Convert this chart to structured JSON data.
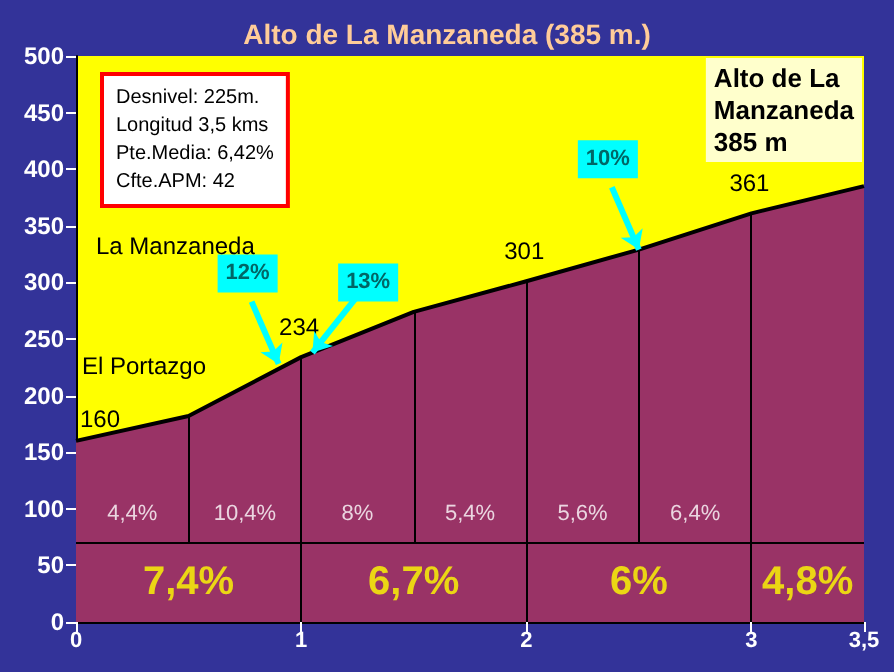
{
  "chart_data": {
    "type": "area",
    "title": "Alto de La Manzaneda (385 m.)",
    "x": [
      0,
      0.5,
      1,
      1.5,
      2,
      2.5,
      3,
      3.5
    ],
    "series": [
      {
        "color": "#993366",
        "values": [
          160,
          182,
          234,
          274,
          301,
          329,
          361,
          385
        ],
        "value_labels": [
          "160",
          null,
          "234",
          null,
          "301",
          null,
          "361",
          null
        ]
      }
    ],
    "xlim": [
      0,
      3.5
    ],
    "xticks": [
      0,
      1,
      2,
      3,
      {
        "value": 3.5,
        "label": "3,5"
      }
    ],
    "ylim": [
      0,
      500
    ],
    "yticks": [
      0,
      50,
      100,
      150,
      200,
      250,
      300,
      350,
      400,
      450,
      500
    ],
    "grid": false,
    "ref_lines": [
      {
        "axis": "x",
        "value": 0.5
      },
      {
        "axis": "x",
        "value": 1
      },
      {
        "axis": "x",
        "value": 1.5
      },
      {
        "axis": "x",
        "value": 2
      },
      {
        "axis": "x",
        "value": 2.5
      },
      {
        "axis": "x",
        "value": 3
      },
      {
        "axis": "y",
        "value": 70
      }
    ],
    "annotations": [
      "Desnivel: 225m.\nLongitud 3,5 kms\nPte.Media: 6,42%\nCfte.APM: 42",
      "Alto de La\nManzaneda\n385 m",
      "El Portazgo",
      "La Manzaneda",
      {
        "text": "12%",
        "x": 0.9,
        "y": 228
      },
      {
        "text": "13%",
        "x": 1.05,
        "y": 238
      },
      {
        "text": "10%",
        "x": 2.5,
        "y": 329
      },
      "4,4%",
      "10,4%",
      "8%",
      "5,4%",
      "5,6%",
      "6,4%",
      "7,4%",
      "6,7%",
      "6%",
      "4,8%"
    ]
  }
}
